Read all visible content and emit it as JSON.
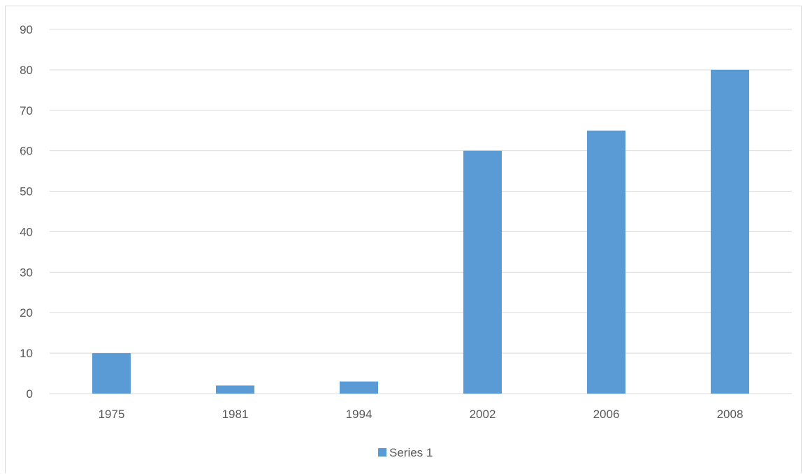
{
  "chart_data": {
    "type": "bar",
    "title": "",
    "xlabel": "",
    "ylabel": "",
    "categories": [
      "1975",
      "1981",
      "1994",
      "2002",
      "2006",
      "2008"
    ],
    "series": [
      {
        "name": "Series 1",
        "values": [
          10,
          2,
          3,
          60,
          65,
          80
        ],
        "color": "#5b9bd5"
      }
    ],
    "ylim": [
      0,
      90
    ],
    "yticks": [
      0,
      10,
      20,
      30,
      40,
      50,
      60,
      70,
      80,
      90
    ],
    "grid": true,
    "legend": "bottom",
    "colors": {
      "grid": "#d9d9d9",
      "axis_text": "#595959",
      "frame": "#d9d9d9"
    }
  }
}
